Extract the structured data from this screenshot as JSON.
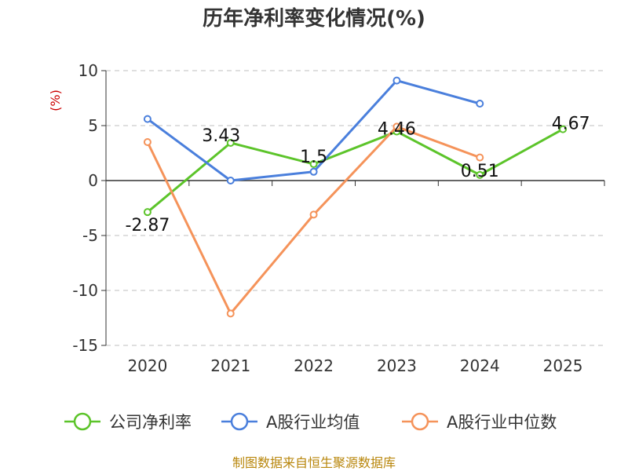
{
  "chart_data": {
    "type": "line",
    "title": "历年净利率变化情况(%)",
    "ylabel": "(%)",
    "categories": [
      "2020",
      "2021",
      "2022",
      "2023",
      "2024",
      "2025"
    ],
    "ylim": [
      -15,
      10
    ],
    "yticks": [
      "10",
      "5",
      "0",
      "-5",
      "-10",
      "-15"
    ],
    "grid": true,
    "legend_position": "bottom",
    "series": [
      {
        "name": "公司净利率",
        "color": "#5cc42a",
        "values": [
          -2.87,
          3.43,
          1.5,
          4.46,
          0.51,
          4.67
        ],
        "labels": [
          "-2.87",
          "3.43",
          "1.5",
          "4.46",
          "0.51",
          "4.67"
        ]
      },
      {
        "name": "A股行业均值",
        "color": "#4a7fdc",
        "values": [
          5.6,
          0.0,
          0.8,
          9.1,
          7.0,
          null
        ],
        "labels": []
      },
      {
        "name": "A股行业中位数",
        "color": "#f5935a",
        "values": [
          3.5,
          -12.1,
          -3.1,
          4.9,
          2.1,
          null
        ],
        "labels": []
      }
    ]
  },
  "source": "制图数据来自恒生聚源数据库"
}
